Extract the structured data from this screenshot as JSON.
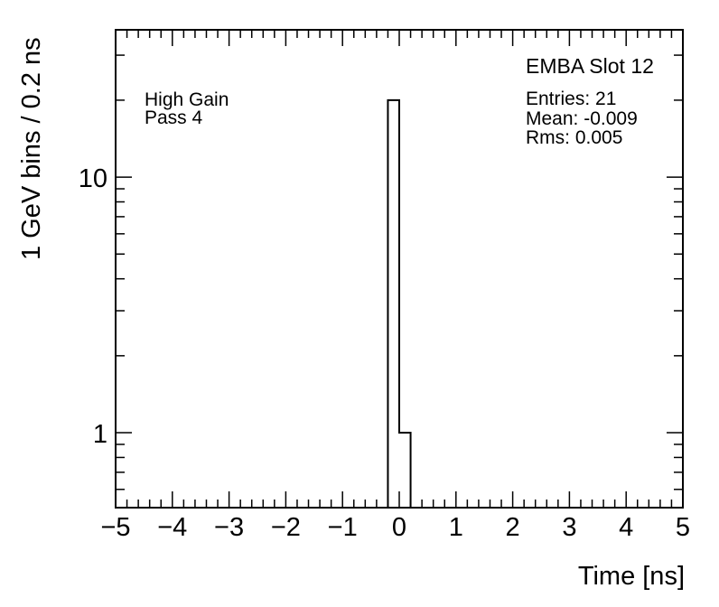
{
  "figure": {
    "background": "#ffffff",
    "axis_color": "#000000",
    "line_color": "#000000"
  },
  "chart_data": {
    "type": "bar",
    "subtype": "step-histogram",
    "title": "",
    "xlabel": "Time [ns]",
    "ylabel": "1 GeV bins / 0.2 ns",
    "xlim": [
      -5,
      5
    ],
    "ylim": [
      0.509,
      37.7
    ],
    "yscale": "log",
    "grid": false,
    "legend_position": "none",
    "x_major_ticks": [
      -5,
      -4,
      -3,
      -2,
      -1,
      0,
      1,
      2,
      3,
      4,
      5
    ],
    "x_tick_labels": [
      "−5",
      "−4",
      "−3",
      "−2",
      "−1",
      "0",
      "1",
      "2",
      "3",
      "4",
      "5"
    ],
    "x_minor_step": 0.2,
    "y_major_ticks": [
      1,
      10
    ],
    "y_tick_labels": [
      "1",
      "10"
    ],
    "y_minor_ticks": [
      0.6,
      0.7,
      0.8,
      0.9,
      2,
      3,
      4,
      5,
      6,
      7,
      8,
      9,
      20,
      30
    ],
    "bin_edges": [
      -0.2,
      0.0,
      0.2
    ],
    "bin_counts": [
      20,
      1
    ]
  },
  "annotations": {
    "gain_label": "High Gain",
    "pass_label": "Pass 4",
    "stats_title": "EMBA Slot 12",
    "stats_entries": "Entries: 21",
    "stats_mean": "Mean: -0.009",
    "stats_rms": "Rms: 0.005"
  }
}
